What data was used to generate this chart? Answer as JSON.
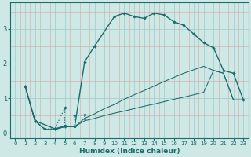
{
  "xlabel": "Humidex (Indice chaleur)",
  "bg_color": "#cde8e5",
  "grid_color_major": "#a8cece",
  "grid_color_minor": "#d4a0a0",
  "line_color": "#1a6b6b",
  "xlim": [
    -0.5,
    23.5
  ],
  "ylim": [
    -0.15,
    3.75
  ],
  "xticks": [
    0,
    1,
    2,
    3,
    4,
    5,
    6,
    7,
    8,
    9,
    10,
    11,
    12,
    13,
    14,
    15,
    16,
    17,
    18,
    19,
    20,
    21,
    22,
    23
  ],
  "yticks": [
    0,
    1,
    2,
    3
  ],
  "curve_main": {
    "x": [
      1,
      2,
      4,
      5,
      6,
      7,
      8,
      10,
      11,
      12,
      13,
      14,
      15,
      16,
      17,
      18,
      19,
      20,
      21,
      22,
      23
    ],
    "y": [
      1.35,
      0.35,
      0.12,
      0.2,
      0.18,
      2.05,
      2.5,
      3.35,
      3.45,
      3.35,
      3.3,
      3.45,
      3.4,
      3.2,
      3.1,
      2.85,
      2.6,
      2.45,
      1.8,
      1.72,
      0.95
    ]
  },
  "curve_dotted": {
    "x": [
      1,
      2,
      3,
      4,
      5,
      5,
      6,
      6,
      7,
      7
    ],
    "y": [
      1.35,
      0.35,
      0.12,
      0.12,
      0.72,
      0.18,
      0.18,
      0.5,
      0.52,
      0.42
    ]
  },
  "curve_upper_diag": {
    "x": [
      1,
      2,
      3,
      4,
      5,
      6,
      7,
      8,
      9,
      10,
      11,
      12,
      13,
      14,
      15,
      16,
      17,
      18,
      19,
      20,
      21,
      22,
      23
    ],
    "y": [
      1.35,
      0.35,
      0.1,
      0.1,
      0.18,
      0.18,
      0.42,
      0.55,
      0.7,
      0.82,
      0.97,
      1.1,
      1.22,
      1.35,
      1.48,
      1.6,
      1.72,
      1.82,
      1.92,
      1.8,
      1.72,
      0.95,
      0.95
    ]
  },
  "curve_lower_diag": {
    "x": [
      1,
      2,
      3,
      4,
      5,
      6,
      7,
      8,
      9,
      10,
      11,
      12,
      13,
      14,
      15,
      16,
      17,
      18,
      19,
      20,
      21,
      22,
      23
    ],
    "y": [
      1.35,
      0.35,
      0.1,
      0.1,
      0.18,
      0.18,
      0.35,
      0.42,
      0.5,
      0.57,
      0.63,
      0.7,
      0.77,
      0.83,
      0.9,
      0.97,
      1.03,
      1.1,
      1.17,
      1.8,
      1.72,
      0.95,
      0.95
    ]
  }
}
